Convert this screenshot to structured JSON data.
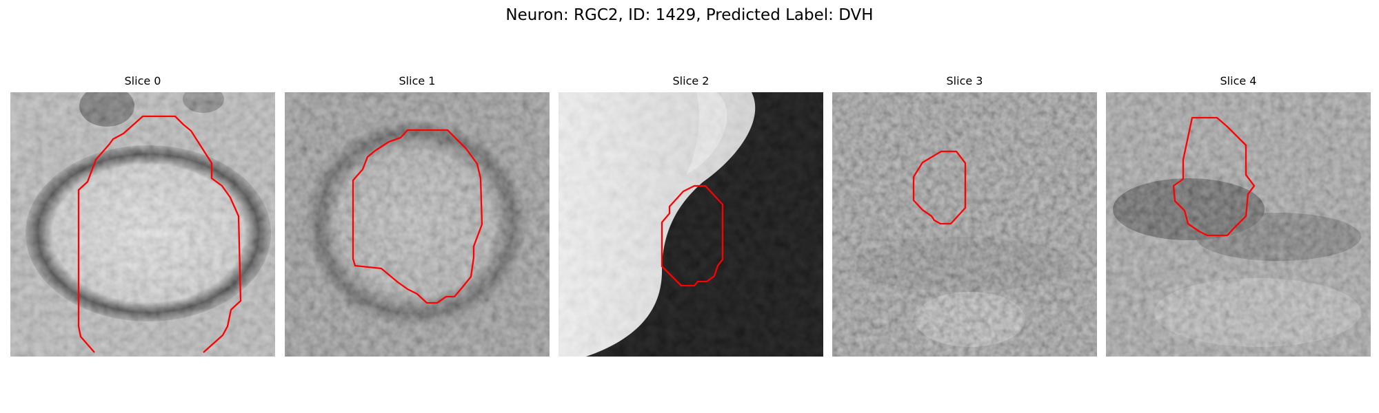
{
  "figure": {
    "title": "Neuron: RGC2, ID: 1429, Predicted Label: DVH"
  },
  "colors": {
    "contour": "#ff0000",
    "background": "#ffffff"
  },
  "slices": [
    {
      "title": "Slice 0"
    },
    {
      "title": "Slice 1"
    },
    {
      "title": "Slice 2"
    },
    {
      "title": "Slice 3"
    },
    {
      "title": "Slice 4"
    }
  ]
}
